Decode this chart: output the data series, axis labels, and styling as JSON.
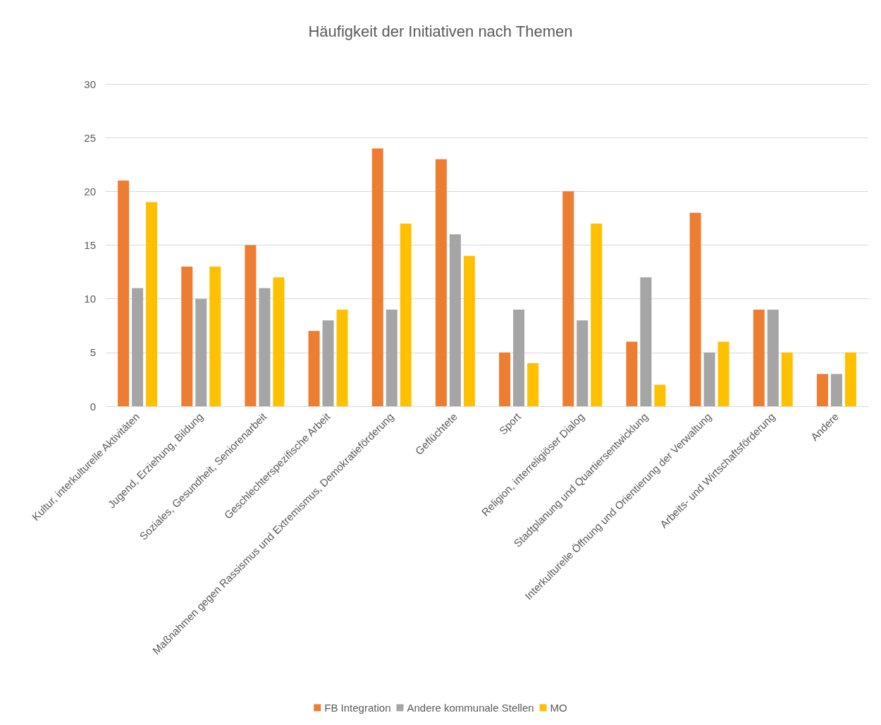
{
  "chart_data": {
    "type": "bar",
    "title": "Häufigkeit der Initiativen nach Themen",
    "categories": [
      "Kultur, interkulturelle Aktivitäten",
      "Jugend, Erziehung, Bildung",
      "Soziales, Gesundheit, Seniorenarbeit",
      "Geschlechterspezifische Arbeit",
      "Maßnahmen gegen Rassismus und Extremismus, Demokratieförderung",
      "Geflüchtete",
      "Sport",
      "Religion, interreligiöser Dialog",
      "Stadtplanung und Quartiersentwicklung",
      "Interkulturelle Öffnung und Orientierung der Verwaltung",
      "Arbeits- und Wirtschaftsförderung",
      "Andere"
    ],
    "series": [
      {
        "name": "FB Integration",
        "color": "#ed7d31",
        "values": [
          21,
          13,
          15,
          7,
          24,
          23,
          5,
          20,
          6,
          18,
          9,
          3
        ]
      },
      {
        "name": "Andere kommunale Stellen",
        "color": "#a5a5a5",
        "values": [
          11,
          10,
          11,
          8,
          9,
          16,
          9,
          8,
          12,
          5,
          9,
          3
        ]
      },
      {
        "name": "MO",
        "color": "#ffc000",
        "values": [
          19,
          13,
          12,
          9,
          17,
          14,
          4,
          17,
          2,
          6,
          5,
          5
        ]
      }
    ],
    "ylim": [
      0,
      30
    ],
    "yticks": [
      0,
      5,
      10,
      15,
      20,
      25,
      30
    ],
    "grid": "y",
    "legend": "bottom"
  }
}
